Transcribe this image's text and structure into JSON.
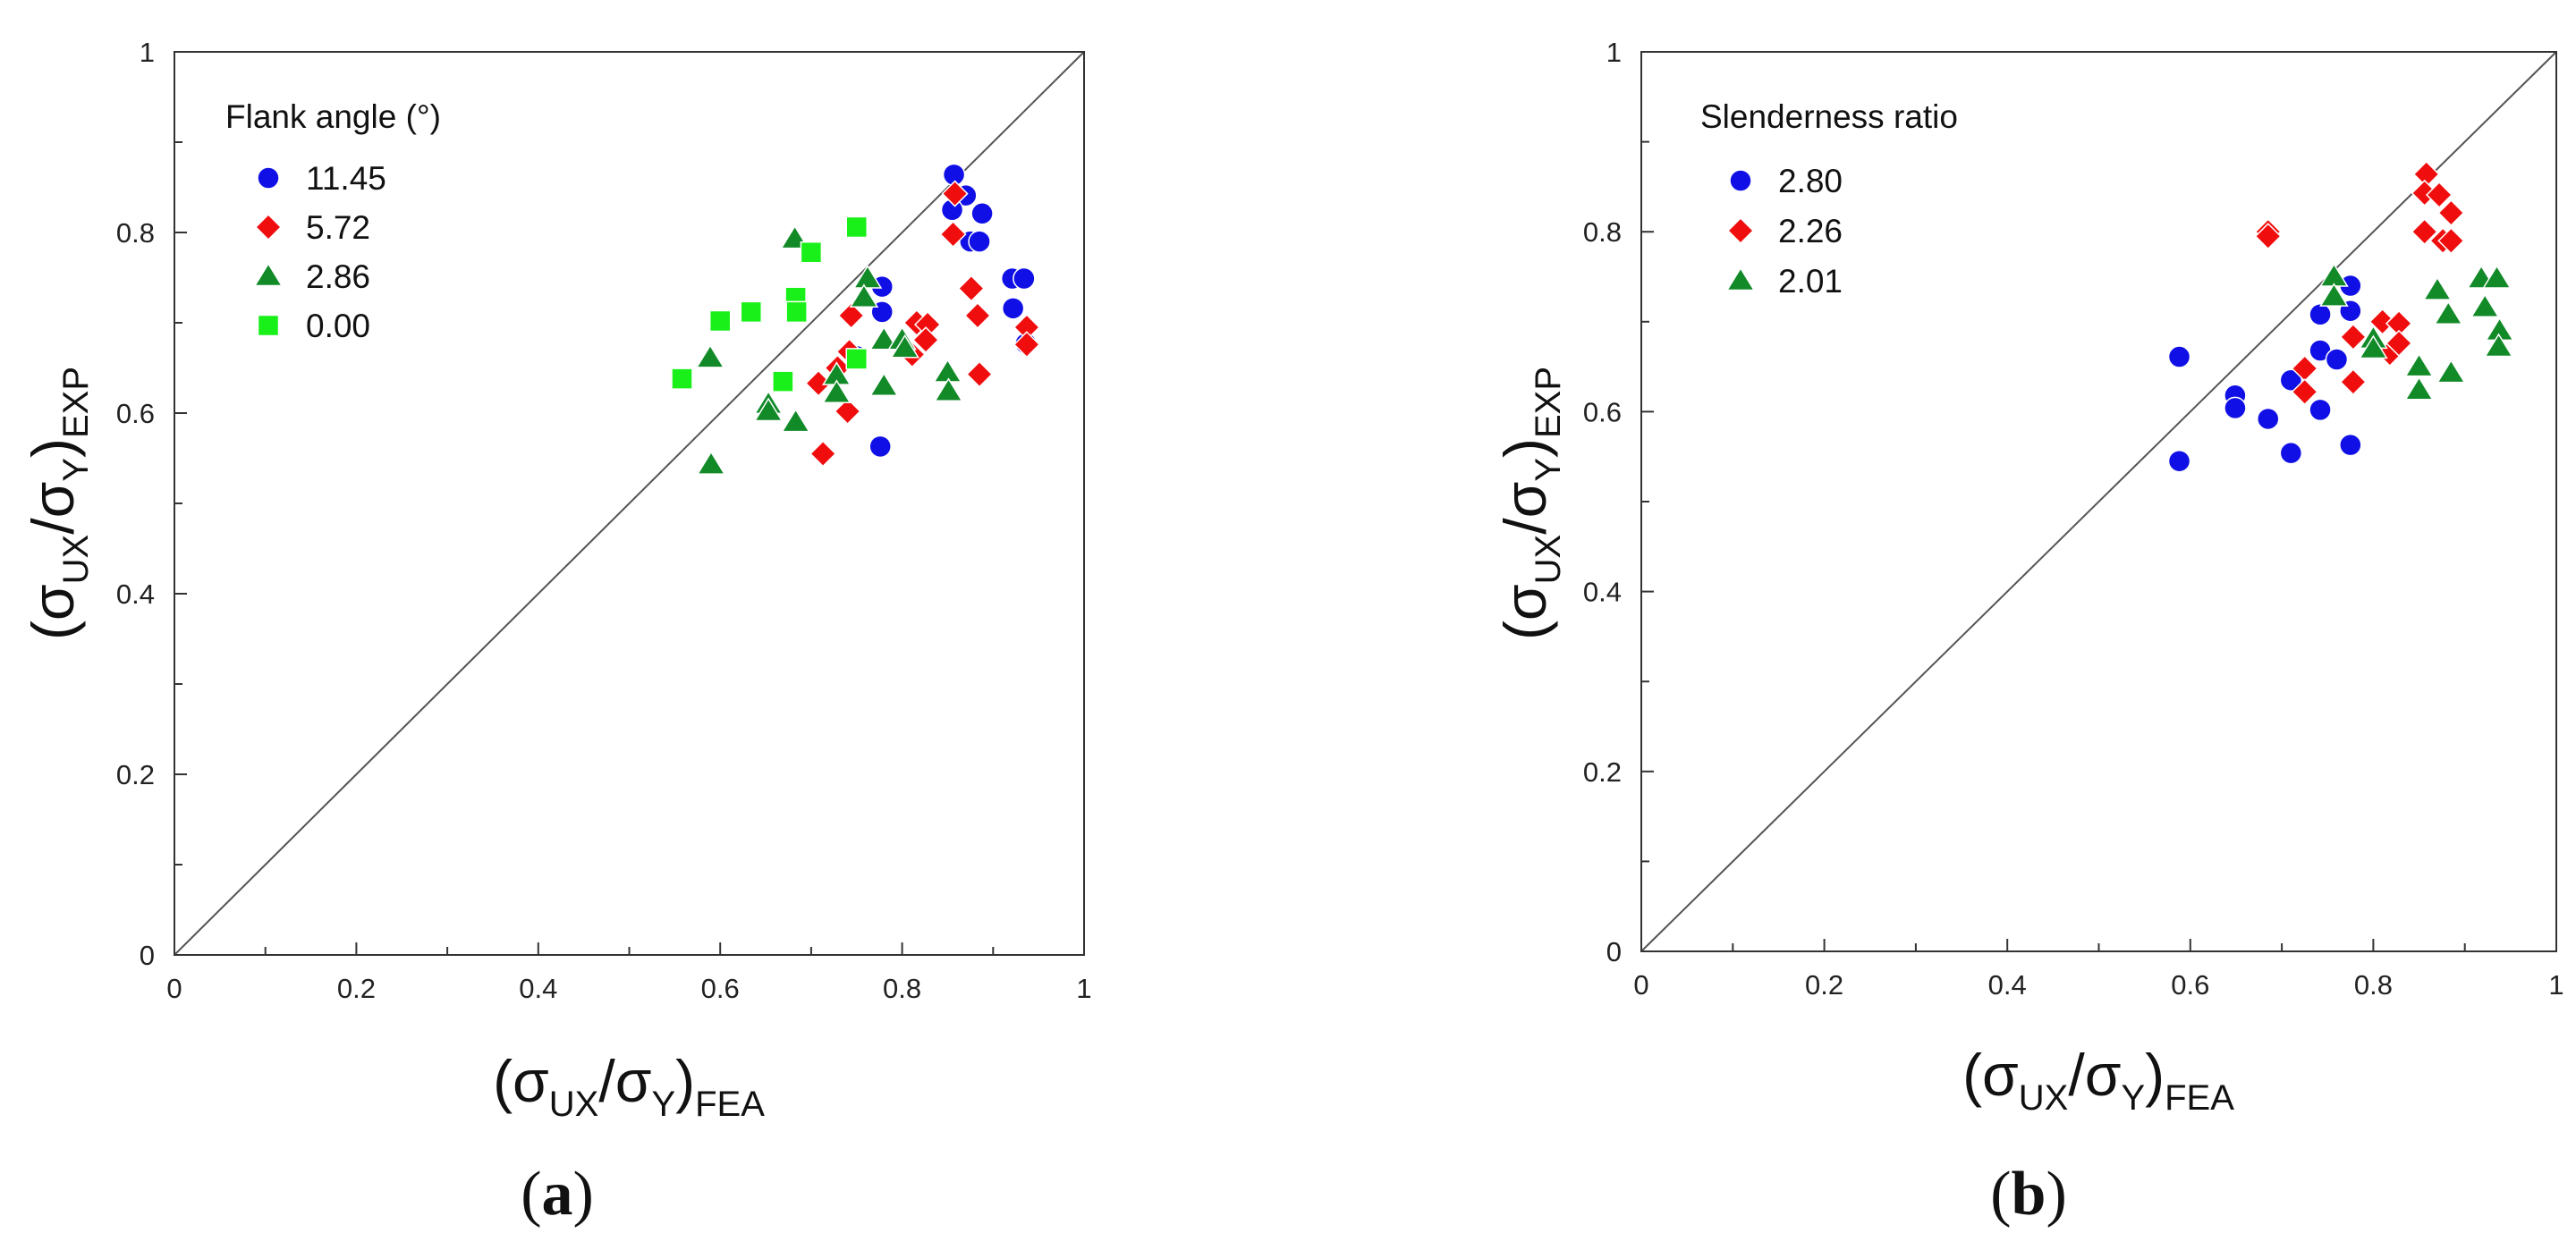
{
  "colors": {
    "blue": "#1010e6",
    "red": "#f00d0d",
    "green": "#128a28",
    "lime": "#19f019",
    "axis": "#333333",
    "diagonal": "#555555",
    "background": "#ffffff"
  },
  "axis_label": {
    "y": {
      "pre": "(σ",
      "sub1": "UX",
      "mid": "/σ",
      "sub2": "Y",
      "post": ")",
      "sub3": "EXP"
    },
    "x": {
      "pre": "(σ",
      "sub1": "UX",
      "mid": "/σ",
      "sub2": "Y",
      "post": ")",
      "sub3": "FEA"
    }
  },
  "chart_data": [
    {
      "type": "scatter",
      "panel_label": {
        "open": "(",
        "letter": "a",
        "close": ")"
      },
      "xlabel": "(σUX/σY)FEA",
      "ylabel": "(σUX/σY)EXP",
      "xlim": [
        0,
        1
      ],
      "ylim": [
        0,
        1
      ],
      "xticks": [
        "0",
        "0.2",
        "0.4",
        "0.6",
        "0.8",
        "1"
      ],
      "yticks": [
        "0",
        "0.2",
        "0.4",
        "0.6",
        "0.8",
        "1"
      ],
      "reference_line": "y = x",
      "legend": {
        "title": "Flank angle (°)",
        "position": "top-left"
      },
      "series": [
        {
          "name": "11.45",
          "marker": "circle",
          "color": "#1010e6",
          "points": [
            [
              0.857,
              0.864
            ],
            [
              0.87,
              0.841
            ],
            [
              0.855,
              0.825
            ],
            [
              0.888,
              0.821
            ],
            [
              0.875,
              0.79
            ],
            [
              0.885,
              0.79
            ],
            [
              0.921,
              0.749
            ],
            [
              0.934,
              0.749
            ],
            [
              0.922,
              0.716
            ],
            [
              0.936,
              0.677
            ],
            [
              0.778,
              0.74
            ],
            [
              0.778,
              0.712
            ],
            [
              0.75,
              0.663
            ],
            [
              0.776,
              0.563
            ]
          ]
        },
        {
          "name": "5.72",
          "marker": "diamond",
          "color": "#f00d0d",
          "points": [
            [
              0.858,
              0.843
            ],
            [
              0.856,
              0.798
            ],
            [
              0.876,
              0.738
            ],
            [
              0.883,
              0.708
            ],
            [
              0.937,
              0.695
            ],
            [
              0.937,
              0.676
            ],
            [
              0.885,
              0.643
            ],
            [
              0.816,
              0.7
            ],
            [
              0.828,
              0.698
            ],
            [
              0.826,
              0.681
            ],
            [
              0.811,
              0.665
            ],
            [
              0.744,
              0.708
            ],
            [
              0.742,
              0.668
            ],
            [
              0.729,
              0.65
            ],
            [
              0.708,
              0.633
            ],
            [
              0.74,
              0.602
            ],
            [
              0.713,
              0.555
            ]
          ]
        },
        {
          "name": "2.86",
          "marker": "triangle",
          "color": "#128a28",
          "points": [
            [
              0.682,
              0.793
            ],
            [
              0.762,
              0.749
            ],
            [
              0.758,
              0.728
            ],
            [
              0.78,
              0.681
            ],
            [
              0.8,
              0.681
            ],
            [
              0.803,
              0.672
            ],
            [
              0.85,
              0.645
            ],
            [
              0.851,
              0.624
            ],
            [
              0.78,
              0.63
            ],
            [
              0.728,
              0.642
            ],
            [
              0.728,
              0.622
            ],
            [
              0.683,
              0.59
            ],
            [
              0.653,
              0.61
            ],
            [
              0.653,
              0.602
            ],
            [
              0.589,
              0.661
            ],
            [
              0.59,
              0.543
            ]
          ]
        },
        {
          "name": "0.00",
          "marker": "square",
          "color": "#19f019",
          "points": [
            [
              0.75,
              0.806
            ],
            [
              0.7,
              0.778
            ],
            [
              0.683,
              0.728
            ],
            [
              0.684,
              0.712
            ],
            [
              0.634,
              0.712
            ],
            [
              0.6,
              0.702
            ],
            [
              0.558,
              0.638
            ],
            [
              0.669,
              0.635
            ],
            [
              0.75,
              0.66
            ]
          ]
        }
      ]
    },
    {
      "type": "scatter",
      "panel_label": {
        "open": "(",
        "letter": "b",
        "close": ")"
      },
      "xlabel": "(σUX/σY)FEA",
      "ylabel": "(σUX/σY)EXP",
      "xlim": [
        0,
        1
      ],
      "ylim": [
        0,
        1
      ],
      "xticks": [
        "0",
        "0.2",
        "0.4",
        "0.6",
        "0.8",
        "1"
      ],
      "yticks": [
        "0",
        "0.2",
        "0.4",
        "0.6",
        "0.8",
        "1"
      ],
      "reference_line": "y = x",
      "legend": {
        "title": "Slenderness ratio",
        "position": "top-left"
      },
      "series": [
        {
          "name": "2.80",
          "marker": "circle",
          "color": "#1010e6",
          "points": [
            [
              0.588,
              0.661
            ],
            [
              0.588,
              0.545
            ],
            [
              0.649,
              0.618
            ],
            [
              0.649,
              0.604
            ],
            [
              0.685,
              0.592
            ],
            [
              0.71,
              0.635
            ],
            [
              0.71,
              0.554
            ],
            [
              0.742,
              0.708
            ],
            [
              0.742,
              0.668
            ],
            [
              0.742,
              0.602
            ],
            [
              0.76,
              0.658
            ],
            [
              0.775,
              0.74
            ],
            [
              0.775,
              0.712
            ],
            [
              0.775,
              0.563
            ]
          ]
        },
        {
          "name": "2.26",
          "marker": "diamond",
          "color": "#f00d0d",
          "points": [
            [
              0.685,
              0.8
            ],
            [
              0.685,
              0.795
            ],
            [
              0.725,
              0.648
            ],
            [
              0.725,
              0.622
            ],
            [
              0.778,
              0.683
            ],
            [
              0.778,
              0.633
            ],
            [
              0.81,
              0.7
            ],
            [
              0.818,
              0.665
            ],
            [
              0.828,
              0.698
            ],
            [
              0.828,
              0.676
            ],
            [
              0.858,
              0.864
            ],
            [
              0.856,
              0.843
            ],
            [
              0.856,
              0.8
            ],
            [
              0.872,
              0.841
            ],
            [
              0.876,
              0.79
            ],
            [
              0.885,
              0.821
            ],
            [
              0.885,
              0.79
            ]
          ]
        },
        {
          "name": "2.01",
          "marker": "triangle",
          "color": "#128a28",
          "points": [
            [
              0.757,
              0.75
            ],
            [
              0.757,
              0.728
            ],
            [
              0.8,
              0.681
            ],
            [
              0.8,
              0.67
            ],
            [
              0.85,
              0.65
            ],
            [
              0.85,
              0.624
            ],
            [
              0.87,
              0.735
            ],
            [
              0.882,
              0.708
            ],
            [
              0.885,
              0.643
            ],
            [
              0.918,
              0.748
            ],
            [
              0.922,
              0.716
            ],
            [
              0.935,
              0.748
            ],
            [
              0.938,
              0.69
            ],
            [
              0.937,
              0.672
            ]
          ]
        }
      ]
    }
  ]
}
